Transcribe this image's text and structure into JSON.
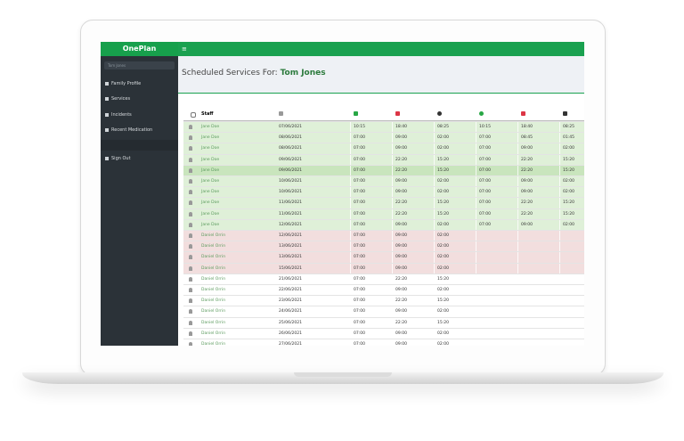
{
  "app": {
    "logo": "OnePlan",
    "user_select": "Tom Jones",
    "menu": [
      "Family Profile",
      "Services",
      "Incidents",
      "Recent Medication"
    ],
    "sign_out": "Sign Out"
  },
  "header": {
    "title": "Scheduled Services For:",
    "name": "Tom Jones"
  },
  "table": {
    "staff_header": "Staff",
    "rows": [
      {
        "status": "success",
        "cells": [
          "Jane Doe",
          "07/06/2021",
          "10:15",
          "18:40",
          "08:25",
          "10:15",
          "18:40",
          "08:25"
        ]
      },
      {
        "status": "success",
        "cells": [
          "Jane Doe",
          "08/06/2021",
          "07:00",
          "09:00",
          "02:00",
          "07:00",
          "08:45",
          "01:45"
        ]
      },
      {
        "status": "success",
        "cells": [
          "Jane Doe",
          "08/06/2021",
          "07:00",
          "09:00",
          "02:00",
          "07:00",
          "09:00",
          "02:00"
        ]
      },
      {
        "status": "success",
        "cells": [
          "Jane Doe",
          "09/06/2021",
          "07:00",
          "22:20",
          "15:20",
          "07:00",
          "22:20",
          "15:20"
        ]
      },
      {
        "status": "active",
        "cells": [
          "Jane Doe",
          "09/06/2021",
          "07:00",
          "22:20",
          "15:20",
          "07:00",
          "22:20",
          "15:20"
        ]
      },
      {
        "status": "success",
        "cells": [
          "Jane Doe",
          "10/06/2021",
          "07:00",
          "09:00",
          "02:00",
          "07:00",
          "09:00",
          "02:00"
        ]
      },
      {
        "status": "success",
        "cells": [
          "Jane Doe",
          "10/06/2021",
          "07:00",
          "09:00",
          "02:00",
          "07:00",
          "09:00",
          "02:00"
        ]
      },
      {
        "status": "success",
        "cells": [
          "Jane Doe",
          "11/06/2021",
          "07:00",
          "22:20",
          "15:20",
          "07:00",
          "22:20",
          "15:20"
        ]
      },
      {
        "status": "success",
        "cells": [
          "Jane Doe",
          "11/06/2021",
          "07:00",
          "22:20",
          "15:20",
          "07:00",
          "22:20",
          "15:20"
        ]
      },
      {
        "status": "success",
        "cells": [
          "Jane Doe",
          "12/06/2021",
          "07:00",
          "09:00",
          "02:00",
          "07:00",
          "09:00",
          "02:00"
        ]
      },
      {
        "status": "danger",
        "cells": [
          "Daniel Orrin",
          "12/06/2021",
          "07:00",
          "09:00",
          "02:00"
        ]
      },
      {
        "status": "danger",
        "cells": [
          "Daniel Orrin",
          "13/06/2021",
          "07:00",
          "09:00",
          "02:00"
        ]
      },
      {
        "status": "danger",
        "cells": [
          "Daniel Orrin",
          "13/06/2021",
          "07:00",
          "09:00",
          "02:00"
        ]
      },
      {
        "status": "danger",
        "cells": [
          "Daniel Orrin",
          "15/06/2021",
          "07:00",
          "09:00",
          "02:00"
        ]
      },
      {
        "status": "default",
        "cells": [
          "Daniel Orrin",
          "21/06/2021",
          "07:00",
          "22:20",
          "15:20"
        ]
      },
      {
        "status": "default",
        "cells": [
          "Daniel Orrin",
          "22/06/2021",
          "07:00",
          "09:00",
          "02:00"
        ]
      },
      {
        "status": "default",
        "cells": [
          "Daniel Orrin",
          "23/06/2021",
          "07:00",
          "22:20",
          "15:20"
        ]
      },
      {
        "status": "default",
        "cells": [
          "Daniel Orrin",
          "24/06/2021",
          "07:00",
          "09:00",
          "02:00"
        ]
      },
      {
        "status": "default",
        "cells": [
          "Daniel Orrin",
          "25/06/2021",
          "07:00",
          "22:20",
          "15:20"
        ]
      },
      {
        "status": "default",
        "cells": [
          "Daniel Orrin",
          "26/06/2021",
          "07:00",
          "09:00",
          "02:00"
        ]
      },
      {
        "status": "default",
        "cells": [
          "Daniel Orrin",
          "27/06/2021",
          "07:00",
          "09:00",
          "02:00"
        ]
      }
    ]
  }
}
